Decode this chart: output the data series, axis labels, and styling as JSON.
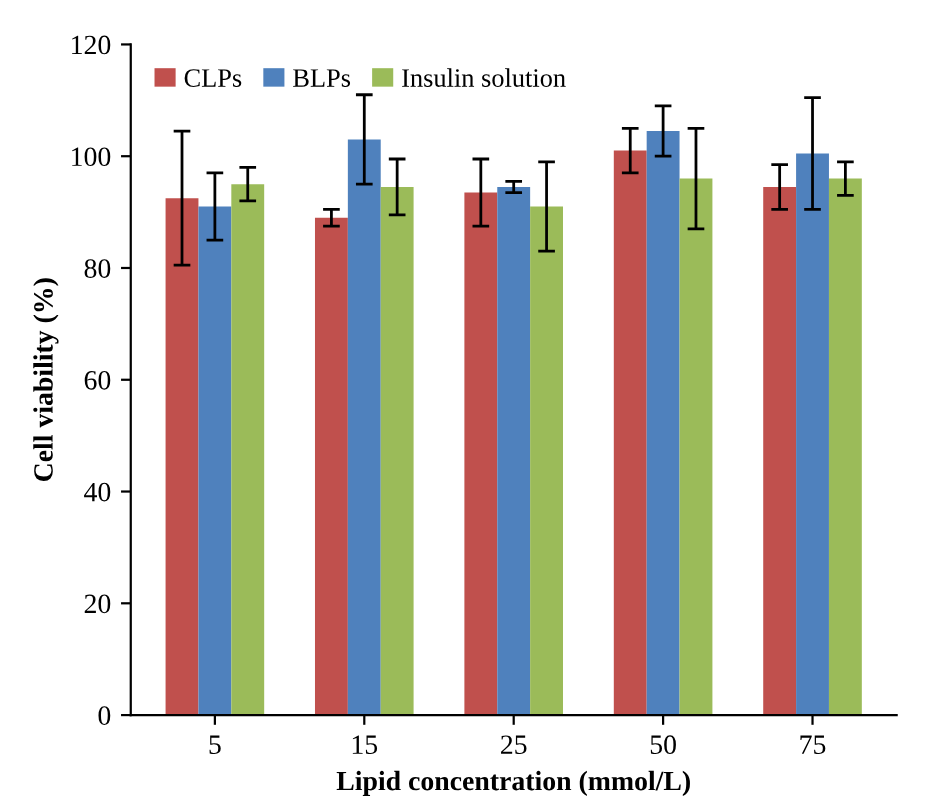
{
  "chart_data": {
    "type": "bar",
    "xlabel": "Lipid concentration (mmol/L)",
    "ylabel": "Cell viability (%)",
    "categories": [
      "5",
      "15",
      "25",
      "50",
      "75"
    ],
    "series": [
      {
        "name": "CLPs",
        "color": "#c0504d",
        "values": [
          92.5,
          89,
          93.5,
          101,
          94.5
        ],
        "errors": [
          12,
          1.5,
          6,
          4,
          4
        ]
      },
      {
        "name": "BLPs",
        "color": "#4f81bd",
        "values": [
          91,
          103,
          94.5,
          104.5,
          100.5
        ],
        "errors": [
          6,
          8,
          1,
          4.5,
          10
        ]
      },
      {
        "name": "Insulin solution",
        "color": "#9bbb59",
        "values": [
          95,
          94.5,
          91,
          96,
          96
        ],
        "errors": [
          3,
          5,
          8,
          9,
          3
        ]
      }
    ],
    "ylim": [
      0,
      120
    ],
    "yticks": [
      0,
      20,
      40,
      60,
      80,
      100,
      120
    ],
    "grid": false,
    "legend": "top left"
  }
}
